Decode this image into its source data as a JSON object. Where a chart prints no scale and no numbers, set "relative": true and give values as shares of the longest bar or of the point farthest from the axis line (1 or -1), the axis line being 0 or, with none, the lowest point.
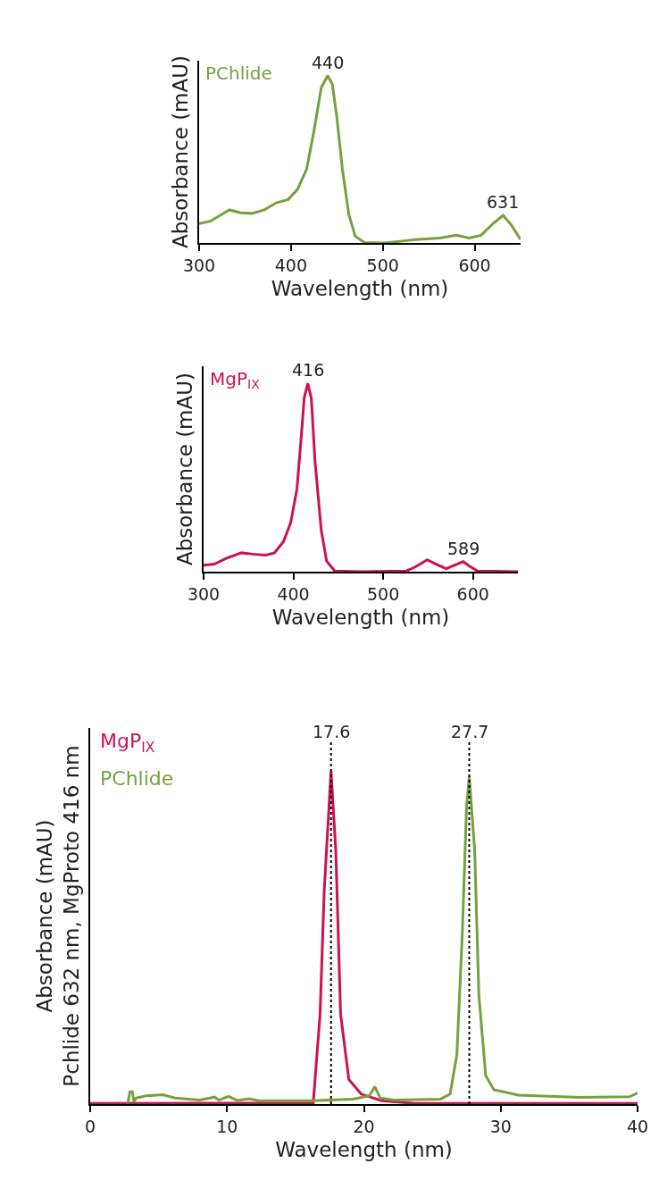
{
  "chart_data": [
    {
      "type": "line",
      "xlabel": "Wavelength (nm)",
      "ylabel": "Absorbance (mAU)",
      "relative": true,
      "xlim": [
        300,
        650
      ],
      "xticks": [
        300,
        400,
        500,
        600
      ],
      "grid": false,
      "legend": false,
      "marker": "none",
      "line_style": "solid",
      "series": [
        {
          "name": "PChlide",
          "color": "#77a040",
          "x": [
            300,
            312,
            333,
            345,
            358,
            371,
            384,
            397,
            407,
            417,
            425,
            433,
            440,
            445,
            450,
            456,
            463,
            470,
            480,
            501,
            519,
            535,
            562,
            580,
            594,
            607,
            620,
            631,
            640,
            650
          ],
          "values": [
            0.116,
            0.13,
            0.198,
            0.18,
            0.177,
            0.198,
            0.24,
            0.26,
            0.32,
            0.44,
            0.67,
            0.93,
            1,
            0.95,
            0.75,
            0.44,
            0.17,
            0.04,
            0.003,
            0,
            0.01,
            0.02,
            0.03,
            0.046,
            0.03,
            0.046,
            0.116,
            0.165,
            0.107,
            0.02
          ]
        }
      ],
      "annotations": [
        {
          "text": "440",
          "x": 440,
          "y": 1
        },
        {
          "text": "631",
          "x": 631,
          "y": 0.165
        }
      ]
    },
    {
      "type": "line",
      "xlabel": "Wavelength (nm)",
      "ylabel": "Absorbance (mAU)",
      "relative": true,
      "xlim": [
        300,
        650
      ],
      "xticks": [
        300,
        400,
        500,
        600
      ],
      "grid": false,
      "legend": false,
      "marker": "none",
      "line_style": "solid",
      "series": [
        {
          "name": "MgP$_{IX}$",
          "color": "#cc1155",
          "x": [
            300,
            312,
            325,
            342,
            355,
            369,
            379,
            389,
            397,
            404,
            409,
            412,
            416,
            420,
            424,
            431,
            437,
            446,
            476,
            526,
            536,
            549,
            559,
            570,
            589,
            596,
            605,
            650
          ],
          "values": [
            0.034,
            0.04,
            0.07,
            0.1,
            0.093,
            0.088,
            0.1,
            0.16,
            0.26,
            0.44,
            0.73,
            0.92,
            1,
            0.92,
            0.59,
            0.22,
            0.056,
            0.004,
            0,
            0.004,
            0.026,
            0.063,
            0.04,
            0.016,
            0.053,
            0.03,
            0.004,
            0
          ]
        }
      ],
      "annotations": [
        {
          "text": "416",
          "x": 416,
          "y": 1
        },
        {
          "text": "589",
          "x": 589,
          "y": 0.053
        }
      ]
    },
    {
      "type": "line",
      "xlabel": "Wavelength (nm)",
      "ylabel": "Absorbance (mAU)\nPchlide 632 nm, MgProto 416 nm",
      "relative": true,
      "xlim": [
        0,
        40
      ],
      "xticks": [
        0,
        10,
        20,
        30,
        40
      ],
      "grid": false,
      "legend": false,
      "marker": "none",
      "line_style": "solid",
      "series": [
        {
          "name": "MgP$_{IX}$",
          "color": "#cc1155",
          "x": [
            0,
            16.3,
            16.8,
            17.1,
            17.6,
            17.95,
            18.3,
            18.9,
            19.8,
            21.3,
            23.7,
            40
          ],
          "values": [
            0.002,
            0.003,
            0.27,
            0.64,
            1,
            0.76,
            0.27,
            0.074,
            0.03,
            0.01,
            0.002,
            0.002
          ]
        },
        {
          "name": "PChlide",
          "color": "#77a040",
          "x": [
            2.75,
            2.9,
            3.08,
            3.2,
            3.35,
            4.1,
            5.3,
            6.2,
            8,
            9.1,
            9.4,
            10.1,
            10.75,
            11.6,
            12.3,
            16.2,
            19.2,
            20.4,
            20.8,
            21.2,
            22.2,
            25.6,
            26.3,
            26.8,
            27.2,
            27.5,
            27.7,
            28.1,
            28.4,
            28.9,
            29.5,
            31.3,
            35.8,
            39.4,
            40
          ],
          "values": [
            0.002,
            0.037,
            0.037,
            0.006,
            0.018,
            0.025,
            0.028,
            0.018,
            0.012,
            0.021,
            0.012,
            0.023,
            0.011,
            0.016,
            0.01,
            0.01,
            0.015,
            0.025,
            0.052,
            0.018,
            0.012,
            0.015,
            0.03,
            0.15,
            0.52,
            0.89,
            0.986,
            0.76,
            0.33,
            0.086,
            0.043,
            0.027,
            0.02,
            0.022,
            0.033
          ]
        }
      ],
      "ref_lines": [
        {
          "axis": "x",
          "value": 17.6,
          "label": "17.6",
          "color": "#000000",
          "line_style": "dotted"
        },
        {
          "axis": "x",
          "value": 27.7,
          "label": "27.7",
          "color": "#000000",
          "line_style": "dotted"
        }
      ]
    }
  ]
}
